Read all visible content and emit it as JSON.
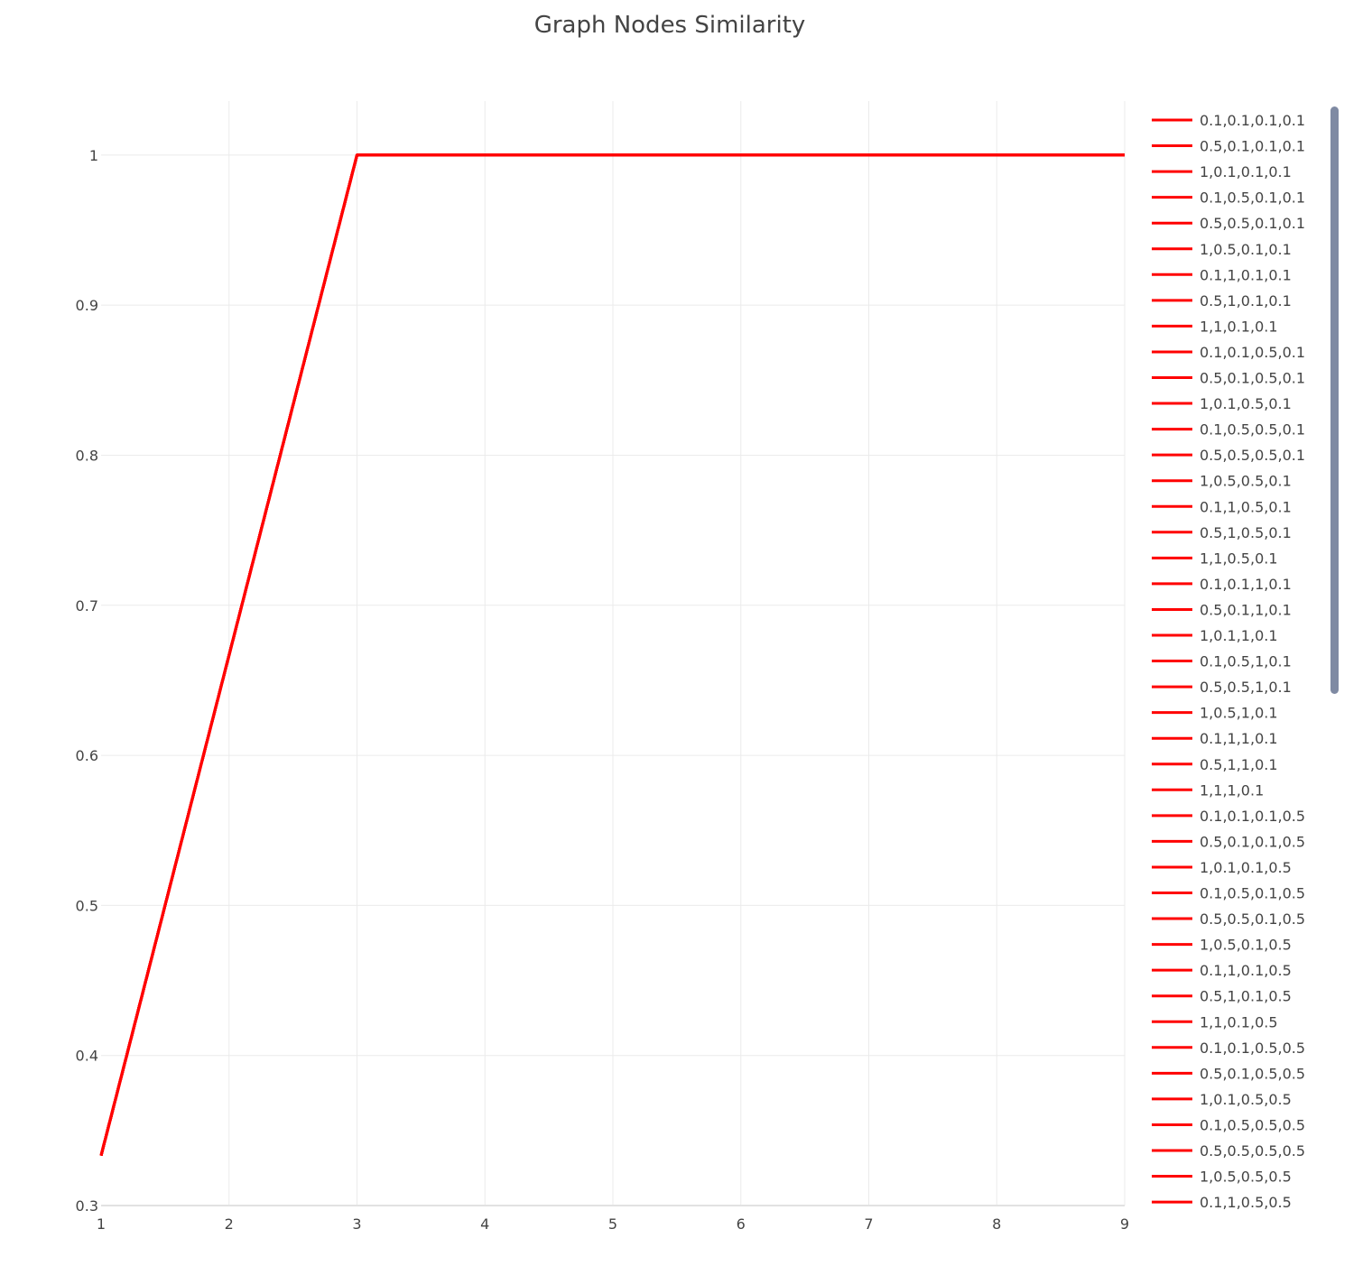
{
  "chart_data": {
    "type": "line",
    "title": "Graph Nodes Similarity",
    "xlabel": "",
    "ylabel": "",
    "x": [
      1,
      2,
      3,
      4,
      5,
      6,
      7,
      8,
      9
    ],
    "y_shared": [
      0.3333,
      0.6667,
      1,
      1,
      1,
      1,
      1,
      1,
      1
    ],
    "xlim": [
      1,
      9
    ],
    "ylim": [
      0.3,
      1.036
    ],
    "x_ticks": [
      "1",
      "2",
      "3",
      "4",
      "5",
      "6",
      "7",
      "8",
      "9"
    ],
    "y_ticks": [
      "0.3",
      "0.4",
      "0.5",
      "0.6",
      "0.7",
      "0.8",
      "0.9",
      "1"
    ],
    "y_tick_values": [
      0.3,
      0.4,
      0.5,
      0.6,
      0.7,
      0.8,
      0.9,
      1
    ],
    "grid": true,
    "legend_placement": "right",
    "legend_scrollable": true,
    "series_color": "#ff0000",
    "series": [
      {
        "name": "0.1,0.1,0.1,0.1"
      },
      {
        "name": "0.5,0.1,0.1,0.1"
      },
      {
        "name": "1,0.1,0.1,0.1"
      },
      {
        "name": "0.1,0.5,0.1,0.1"
      },
      {
        "name": "0.5,0.5,0.1,0.1"
      },
      {
        "name": "1,0.5,0.1,0.1"
      },
      {
        "name": "0.1,1,0.1,0.1"
      },
      {
        "name": "0.5,1,0.1,0.1"
      },
      {
        "name": "1,1,0.1,0.1"
      },
      {
        "name": "0.1,0.1,0.5,0.1"
      },
      {
        "name": "0.5,0.1,0.5,0.1"
      },
      {
        "name": "1,0.1,0.5,0.1"
      },
      {
        "name": "0.1,0.5,0.5,0.1"
      },
      {
        "name": "0.5,0.5,0.5,0.1"
      },
      {
        "name": "1,0.5,0.5,0.1"
      },
      {
        "name": "0.1,1,0.5,0.1"
      },
      {
        "name": "0.5,1,0.5,0.1"
      },
      {
        "name": "1,1,0.5,0.1"
      },
      {
        "name": "0.1,0.1,1,0.1"
      },
      {
        "name": "0.5,0.1,1,0.1"
      },
      {
        "name": "1,0.1,1,0.1"
      },
      {
        "name": "0.1,0.5,1,0.1"
      },
      {
        "name": "0.5,0.5,1,0.1"
      },
      {
        "name": "1,0.5,1,0.1"
      },
      {
        "name": "0.1,1,1,0.1"
      },
      {
        "name": "0.5,1,1,0.1"
      },
      {
        "name": "1,1,1,0.1"
      },
      {
        "name": "0.1,0.1,0.1,0.5"
      },
      {
        "name": "0.5,0.1,0.1,0.5"
      },
      {
        "name": "1,0.1,0.1,0.5"
      },
      {
        "name": "0.1,0.5,0.1,0.5"
      },
      {
        "name": "0.5,0.5,0.1,0.5"
      },
      {
        "name": "1,0.5,0.1,0.5"
      },
      {
        "name": "0.1,1,0.1,0.5"
      },
      {
        "name": "0.5,1,0.1,0.5"
      },
      {
        "name": "1,1,0.1,0.5"
      },
      {
        "name": "0.1,0.1,0.5,0.5"
      },
      {
        "name": "0.5,0.1,0.5,0.5"
      },
      {
        "name": "1,0.1,0.5,0.5"
      },
      {
        "name": "0.1,0.5,0.5,0.5"
      },
      {
        "name": "0.5,0.5,0.5,0.5"
      },
      {
        "name": "1,0.5,0.5,0.5"
      },
      {
        "name": "0.1,1,0.5,0.5"
      }
    ]
  }
}
